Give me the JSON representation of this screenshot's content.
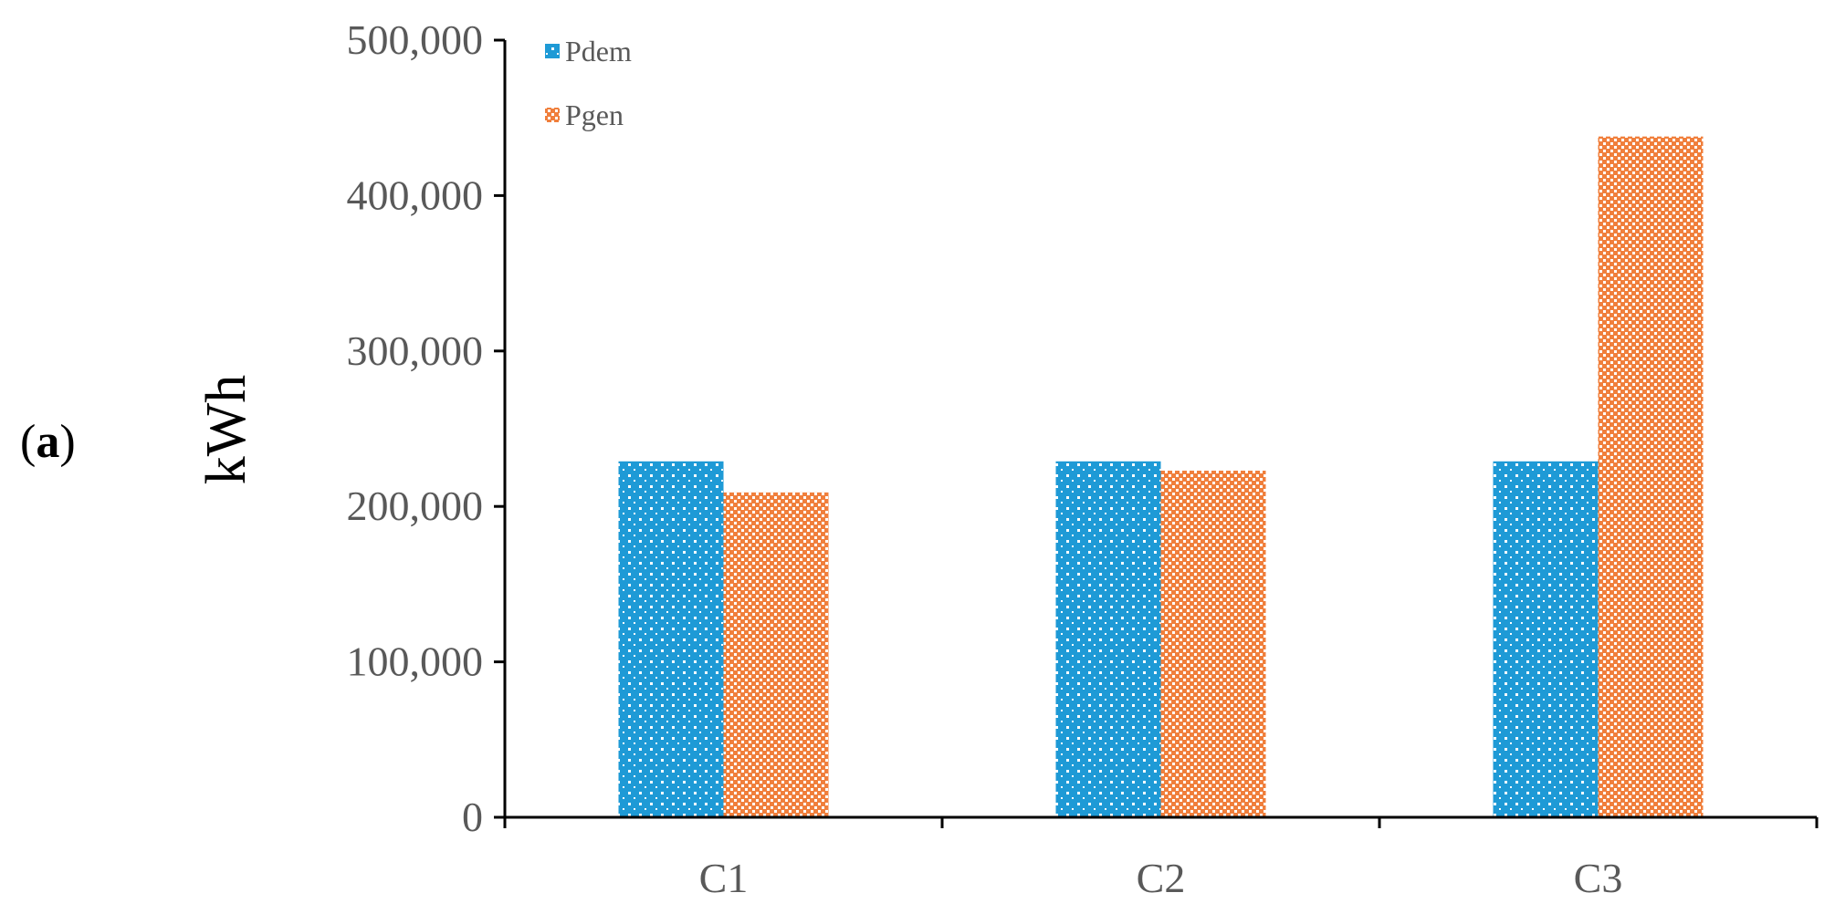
{
  "panel_label": {
    "open": "(",
    "letter": "a",
    "close": ")"
  },
  "colors": {
    "pdem": "#1E9AD6",
    "pgen": "#F07F3C",
    "axis": "#000000",
    "tick_text": "#595959"
  },
  "chart_data": {
    "type": "bar",
    "categories": [
      "C1",
      "C2",
      "C3"
    ],
    "series": [
      {
        "name": "Pdem",
        "values": [
          229000,
          229000,
          229000
        ],
        "pattern": "dots"
      },
      {
        "name": "Pgen",
        "values": [
          209000,
          223000,
          438000
        ],
        "pattern": "checker"
      }
    ],
    "title": "",
    "xlabel": "",
    "ylabel": "kWh",
    "ylim": [
      0,
      500000
    ],
    "yticks": [
      0,
      100000,
      200000,
      300000,
      400000,
      500000
    ],
    "ytick_labels": [
      "0",
      "100,000",
      "200,000",
      "300,000",
      "400,000",
      "500,000"
    ],
    "grid": false,
    "legend_position": "top-left inside plot"
  }
}
